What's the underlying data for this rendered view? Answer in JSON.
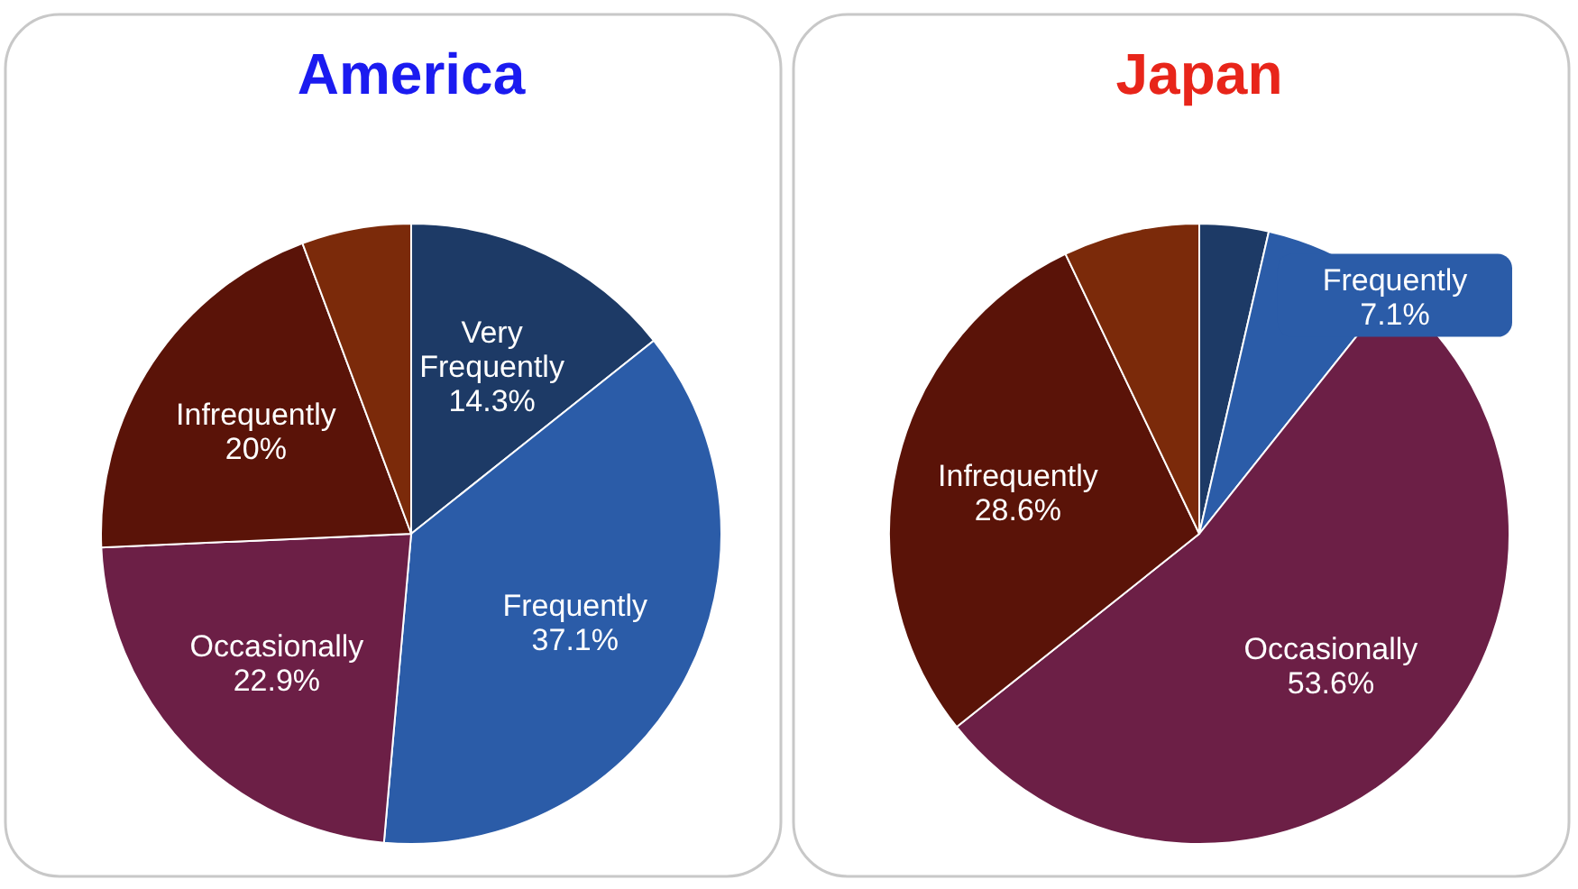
{
  "chart_data": [
    {
      "type": "pie",
      "title": "America",
      "categories": [
        "Very Frequently",
        "Frequently",
        "Occasionally",
        "Infrequently",
        null
      ],
      "values": [
        14.3,
        37.1,
        22.9,
        20,
        5.7
      ],
      "colors": [
        "#1d3a66",
        "#2b5ca8",
        "#6c1f46",
        "#5a1308",
        "#7b2a0a"
      ],
      "value_labels": [
        "14.3%",
        "37.1%",
        "22.9%",
        "20%",
        null
      ]
    },
    {
      "type": "pie",
      "title": "Japan",
      "categories": [
        null,
        "Frequently",
        "Occasionally",
        "Infrequently",
        null
      ],
      "values": [
        3.6,
        7.1,
        53.6,
        28.6,
        7.1
      ],
      "colors": [
        "#1d3a66",
        "#2b5ca8",
        "#6c1f46",
        "#5a1308",
        "#7b2a0a"
      ],
      "value_labels": [
        null,
        "7.1%",
        "53.6%",
        "28.6%",
        null
      ]
    }
  ]
}
